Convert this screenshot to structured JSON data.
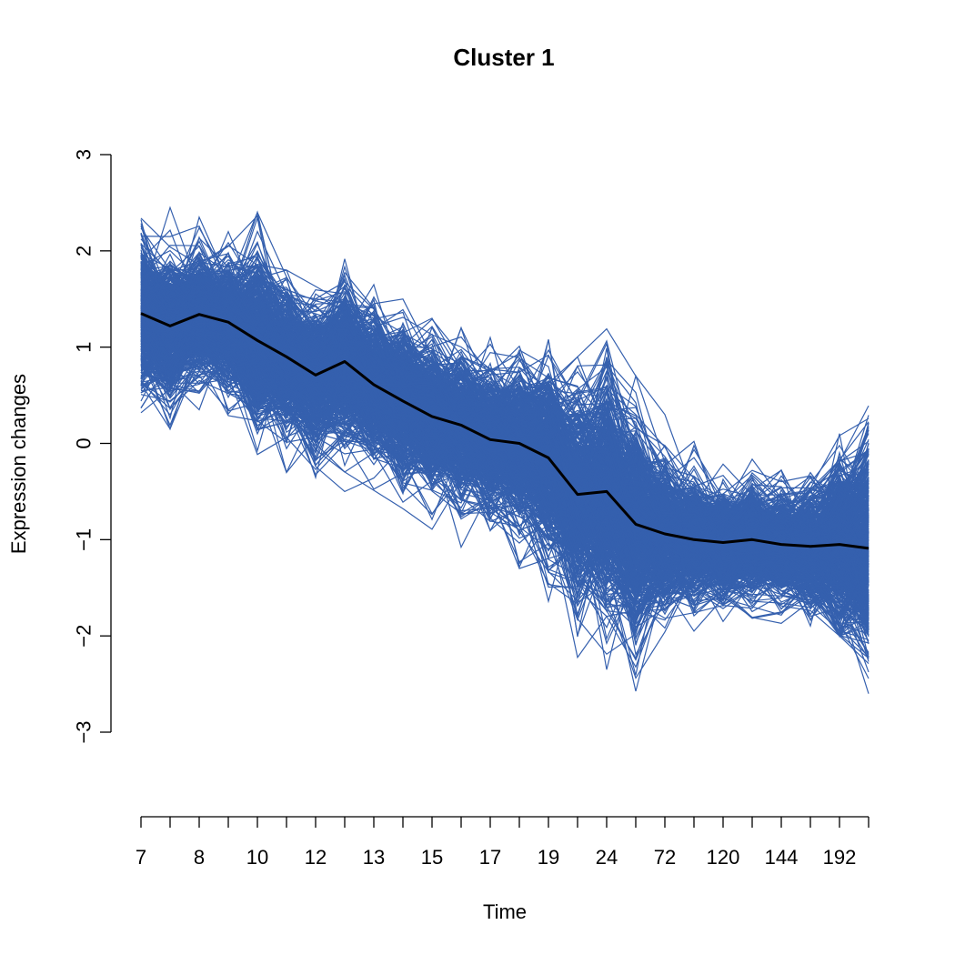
{
  "chart_data": {
    "type": "line",
    "title": "Cluster 1",
    "xlabel": "Time",
    "ylabel": "Expression changes",
    "y_ticks": [
      "3",
      "2",
      "1",
      "0",
      "−1",
      "−2",
      "−3"
    ],
    "y_tick_values": [
      3,
      2,
      1,
      0,
      -1,
      -2,
      -3
    ],
    "ylim": [
      -3,
      3
    ],
    "x_tick_count": 26,
    "x_tick_labels": [
      {
        "index": 0,
        "label": "7"
      },
      {
        "index": 2,
        "label": "8"
      },
      {
        "index": 4,
        "label": "10"
      },
      {
        "index": 6,
        "label": "12"
      },
      {
        "index": 8,
        "label": "13"
      },
      {
        "index": 10,
        "label": "15"
      },
      {
        "index": 12,
        "label": "17"
      },
      {
        "index": 14,
        "label": "19"
      },
      {
        "index": 16,
        "label": "24"
      },
      {
        "index": 18,
        "label": "72"
      },
      {
        "index": 20,
        "label": "120"
      },
      {
        "index": 22,
        "label": "144"
      },
      {
        "index": 24,
        "label": "192"
      }
    ],
    "series_color": "#3560AE",
    "mean_color": "#000000",
    "mean": [
      1.35,
      1.22,
      1.34,
      1.26,
      1.07,
      0.9,
      0.71,
      0.85,
      0.61,
      0.44,
      0.28,
      0.19,
      0.04,
      0.0,
      -0.15,
      -0.53,
      -0.5,
      -0.84,
      -0.94,
      -1.0,
      -1.03,
      -1.0,
      -1.05,
      -1.07,
      -1.05,
      -1.09
    ],
    "band_upper": [
      2.45,
      2.35,
      2.25,
      2.1,
      2.3,
      1.7,
      1.6,
      1.9,
      1.55,
      1.4,
      1.2,
      1.1,
      1.0,
      1.1,
      1.1,
      0.8,
      1.1,
      0.6,
      0.2,
      0.0,
      -0.15,
      -0.15,
      -0.3,
      -0.1,
      0.6,
      0.9
    ],
    "band_lower": [
      0.3,
      0.25,
      0.45,
      0.35,
      -0.25,
      -0.35,
      -0.45,
      -0.4,
      -0.6,
      -0.8,
      -0.95,
      -1.0,
      -1.0,
      -1.2,
      -1.6,
      -2.2,
      -2.25,
      -2.6,
      -2.0,
      -1.85,
      -1.75,
      -1.75,
      -1.8,
      -1.85,
      -1.9,
      -2.5
    ]
  }
}
